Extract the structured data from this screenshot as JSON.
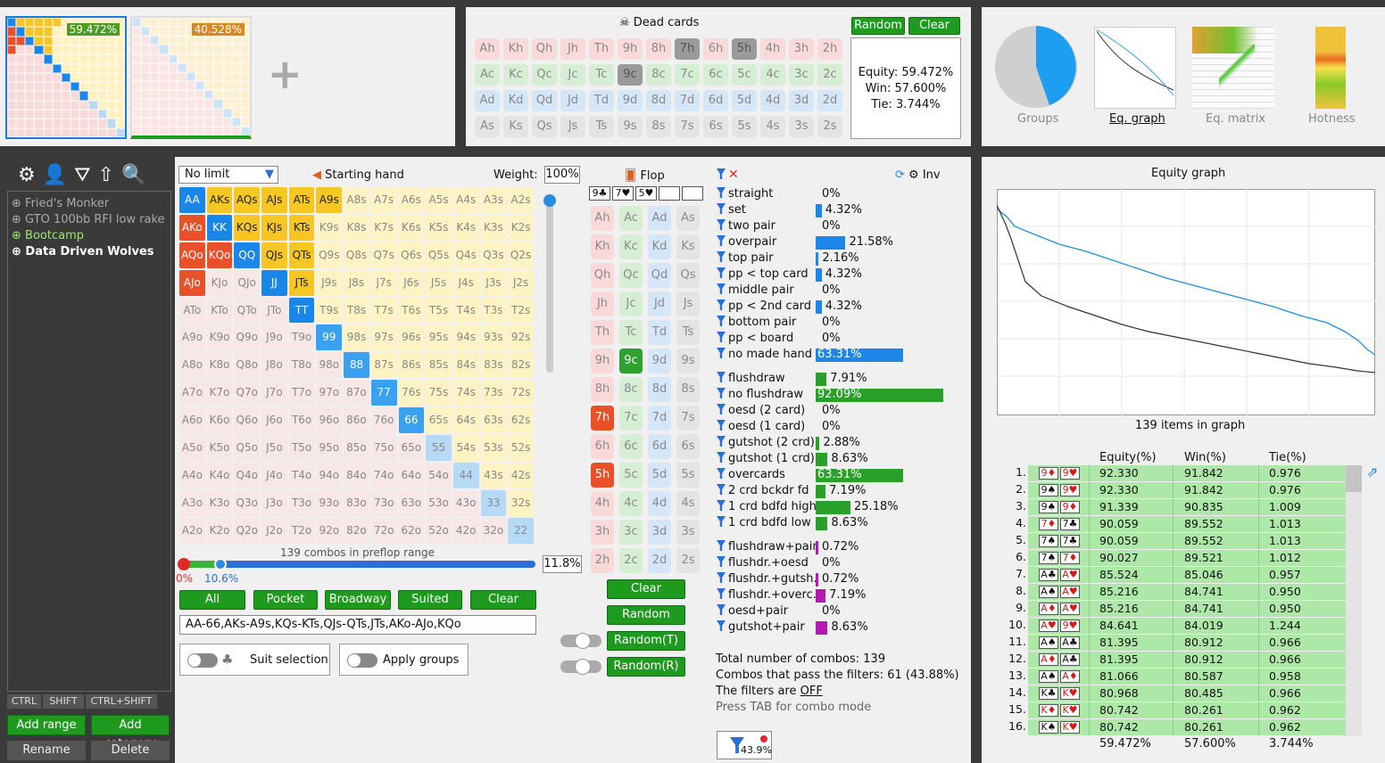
{
  "top": {
    "range1_pct": "59.472%",
    "range2_pct": "40.528%",
    "add_symbol": "+",
    "dead_cards_label": "Dead cards",
    "random_label": "Random",
    "clear_label": "Clear",
    "equity": "Equity: 59.472%",
    "win": "Win: 57.600%",
    "tie": "Tie: 3.744%",
    "views": [
      "Groups",
      "Eq. graph",
      "Eq. matrix",
      "Hotness"
    ]
  },
  "dead_rows": [
    [
      "Ah",
      "Kh",
      "Qh",
      "Jh",
      "Th",
      "9h",
      "8h",
      "7h",
      "6h",
      "5h",
      "4h",
      "3h",
      "2h"
    ],
    [
      "Ac",
      "Kc",
      "Qc",
      "Jc",
      "Tc",
      "9c",
      "8c",
      "7c",
      "6c",
      "5c",
      "4c",
      "3c",
      "2c"
    ],
    [
      "Ad",
      "Kd",
      "Qd",
      "Jd",
      "Td",
      "9d",
      "8d",
      "7d",
      "6d",
      "5d",
      "4d",
      "3d",
      "2d"
    ],
    [
      "As",
      "Ks",
      "Qs",
      "Js",
      "Ts",
      "9s",
      "8s",
      "7s",
      "6s",
      "5s",
      "4s",
      "3s",
      "2s"
    ]
  ],
  "tree": {
    "items": [
      "Fried's Monker",
      "GTO 100bb RFI low rake",
      "Bootcamp",
      "Data Driven Wolves"
    ],
    "keys": [
      "CTRL",
      "SHIFT",
      "CTRL+SHIFT"
    ],
    "add_range": "Add range",
    "add_category": "Add category",
    "rename": "Rename",
    "delete": "Delete"
  },
  "editor": {
    "limit": "No limit",
    "starting_hand": "Starting hand",
    "weight_label": "Weight:",
    "weight": "100%",
    "combos_text": "139 combos in preflop range",
    "slider_min": "0%",
    "slider_val": "10.6%",
    "slider_pct": "11.8%",
    "buttons": [
      "All",
      "Pocket",
      "Broadway",
      "Suited",
      "Clear"
    ],
    "range_text": "AA-66,AKs-A9s,KQs-KTs,QJs-QTs,JTs,AKo-AJo,KQo",
    "suit_selection": "Suit selection",
    "apply_groups": "Apply groups"
  },
  "hands": [
    [
      "AA",
      "AKs",
      "AQs",
      "AJs",
      "ATs",
      "A9s",
      "A8s",
      "A7s",
      "A6s",
      "A5s",
      "A4s",
      "A3s",
      "A2s"
    ],
    [
      "AKo",
      "KK",
      "KQs",
      "KJs",
      "KTs",
      "K9s",
      "K8s",
      "K7s",
      "K6s",
      "K5s",
      "K4s",
      "K3s",
      "K2s"
    ],
    [
      "AQo",
      "KQo",
      "QQ",
      "QJs",
      "QTs",
      "Q9s",
      "Q8s",
      "Q7s",
      "Q6s",
      "Q5s",
      "Q4s",
      "Q3s",
      "Q2s"
    ],
    [
      "AJo",
      "KJo",
      "QJo",
      "JJ",
      "JTs",
      "J9s",
      "J8s",
      "J7s",
      "J6s",
      "J5s",
      "J4s",
      "J3s",
      "J2s"
    ],
    [
      "ATo",
      "KTo",
      "QTo",
      "JTo",
      "TT",
      "T9s",
      "T8s",
      "T7s",
      "T6s",
      "T5s",
      "T4s",
      "T3s",
      "T2s"
    ],
    [
      "A9o",
      "K9o",
      "Q9o",
      "J9o",
      "T9o",
      "99",
      "98s",
      "97s",
      "96s",
      "95s",
      "94s",
      "93s",
      "92s"
    ],
    [
      "A8o",
      "K8o",
      "Q8o",
      "J8o",
      "T8o",
      "98o",
      "88",
      "87s",
      "86s",
      "85s",
      "84s",
      "83s",
      "82s"
    ],
    [
      "A7o",
      "K7o",
      "Q7o",
      "J7o",
      "T7o",
      "97o",
      "87o",
      "77",
      "76s",
      "75s",
      "74s",
      "73s",
      "72s"
    ],
    [
      "A6o",
      "K6o",
      "Q6o",
      "J6o",
      "T6o",
      "96o",
      "86o",
      "76o",
      "66",
      "65s",
      "64s",
      "63s",
      "62s"
    ],
    [
      "A5o",
      "K5o",
      "Q5o",
      "J5o",
      "T5o",
      "95o",
      "85o",
      "75o",
      "65o",
      "55",
      "54s",
      "53s",
      "52s"
    ],
    [
      "A4o",
      "K4o",
      "Q4o",
      "J4o",
      "T4o",
      "94o",
      "84o",
      "74o",
      "64o",
      "54o",
      "44",
      "43s",
      "42s"
    ],
    [
      "A3o",
      "K3o",
      "Q3o",
      "J3o",
      "T3o",
      "93o",
      "83o",
      "73o",
      "63o",
      "53o",
      "43o",
      "33",
      "32s"
    ],
    [
      "A2o",
      "K2o",
      "Q2o",
      "J2o",
      "T2o",
      "92o",
      "82o",
      "72o",
      "62o",
      "52o",
      "42o",
      "32o",
      "22"
    ]
  ],
  "flop": {
    "label": "Flop",
    "board": [
      "9♣",
      "7♥",
      "5♥"
    ],
    "ranks": [
      "A",
      "K",
      "Q",
      "J",
      "T",
      "9",
      "8",
      "7",
      "6",
      "5",
      "4",
      "3",
      "2"
    ],
    "suits": [
      "h",
      "c",
      "d",
      "s"
    ],
    "buttons": [
      "Clear",
      "Random",
      "Random(T)",
      "Random(R)"
    ]
  },
  "filters": {
    "inv": "Inv",
    "made": [
      [
        "straight",
        "0%"
      ],
      [
        "set",
        "4.32%"
      ],
      [
        "two pair",
        "0%"
      ],
      [
        "overpair",
        "21.58%"
      ],
      [
        "top pair",
        "2.16%"
      ],
      [
        "pp < top card",
        "4.32%"
      ],
      [
        "middle pair",
        "0%"
      ],
      [
        "pp < 2nd card",
        "4.32%"
      ],
      [
        "bottom pair",
        "0%"
      ],
      [
        "pp < board",
        "0%"
      ],
      [
        "no made hand",
        "63.31%"
      ]
    ],
    "made_vals": [
      0,
      4.32,
      0,
      21.58,
      2.16,
      4.32,
      0,
      4.32,
      0,
      0,
      63.31
    ],
    "draws": [
      [
        "flushdraw",
        "7.91%"
      ],
      [
        "no flushdraw",
        "92.09%"
      ],
      [
        "oesd (2 card)",
        "0%"
      ],
      [
        "oesd (1 card)",
        "0%"
      ],
      [
        "gutshot (2 crd)",
        "2.88%"
      ],
      [
        "gutshot (1 crd)",
        "8.63%"
      ],
      [
        "overcards",
        "63.31%"
      ],
      [
        "2 crd bckdr fd",
        "7.19%"
      ],
      [
        "1 crd bdfd high",
        "25.18%"
      ],
      [
        "1 crd bdfd low",
        "8.63%"
      ]
    ],
    "draw_vals": [
      7.91,
      92.09,
      0,
      0,
      2.88,
      8.63,
      63.31,
      7.19,
      25.18,
      8.63
    ],
    "combo": [
      [
        "flushdraw+pair",
        "0.72%"
      ],
      [
        "flushdr.+oesd",
        "0%"
      ],
      [
        "flushdr.+gutsh.",
        "0.72%"
      ],
      [
        "flushdr.+overc.",
        "7.19%"
      ],
      [
        "oesd+pair",
        "0%"
      ],
      [
        "gutshot+pair",
        "8.63%"
      ]
    ],
    "combo_vals": [
      0.72,
      0,
      0.72,
      7.19,
      0,
      8.63
    ],
    "total": "Total number of combos: 139",
    "pass": "Combos that pass the filters: 61 (43.88%)",
    "filters_are": "The filters are",
    "off": "OFF",
    "tab": "Press TAB for combo mode",
    "badge": "43.9%"
  },
  "graph": {
    "title": "Equity graph",
    "items": "139 items in graph",
    "headers": [
      "Equity(%)",
      "Win(%)",
      "Tie(%)"
    ],
    "rows": [
      [
        "1.",
        "9♦",
        "9♥",
        "92.330",
        "91.842",
        "0.976"
      ],
      [
        "2.",
        "9♠",
        "9♥",
        "92.330",
        "91.842",
        "0.976"
      ],
      [
        "3.",
        "9♠",
        "9♦",
        "91.339",
        "90.835",
        "1.009"
      ],
      [
        "4.",
        "7♦",
        "7♣",
        "90.059",
        "89.552",
        "1.013"
      ],
      [
        "5.",
        "7♠",
        "7♣",
        "90.059",
        "89.552",
        "1.013"
      ],
      [
        "6.",
        "7♠",
        "7♦",
        "90.027",
        "89.521",
        "1.012"
      ],
      [
        "7.",
        "A♣",
        "A♥",
        "85.524",
        "85.046",
        "0.957"
      ],
      [
        "8.",
        "A♠",
        "A♥",
        "85.216",
        "84.741",
        "0.950"
      ],
      [
        "9.",
        "A♦",
        "A♥",
        "85.216",
        "84.741",
        "0.950"
      ],
      [
        "10.",
        "A♥",
        "9♥",
        "84.641",
        "84.019",
        "1.244"
      ],
      [
        "11.",
        "A♠",
        "A♣",
        "81.395",
        "80.912",
        "0.966"
      ],
      [
        "12.",
        "A♦",
        "A♣",
        "81.395",
        "80.912",
        "0.966"
      ],
      [
        "13.",
        "A♠",
        "A♦",
        "81.066",
        "80.587",
        "0.958"
      ],
      [
        "14.",
        "K♣",
        "K♥",
        "80.968",
        "80.485",
        "0.966"
      ],
      [
        "15.",
        "K♦",
        "K♥",
        "80.742",
        "80.261",
        "0.962"
      ],
      [
        "16.",
        "K♠",
        "K♥",
        "80.742",
        "80.261",
        "0.962"
      ]
    ],
    "totals": [
      "59.472%",
      "57.600%",
      "3.744%"
    ]
  }
}
